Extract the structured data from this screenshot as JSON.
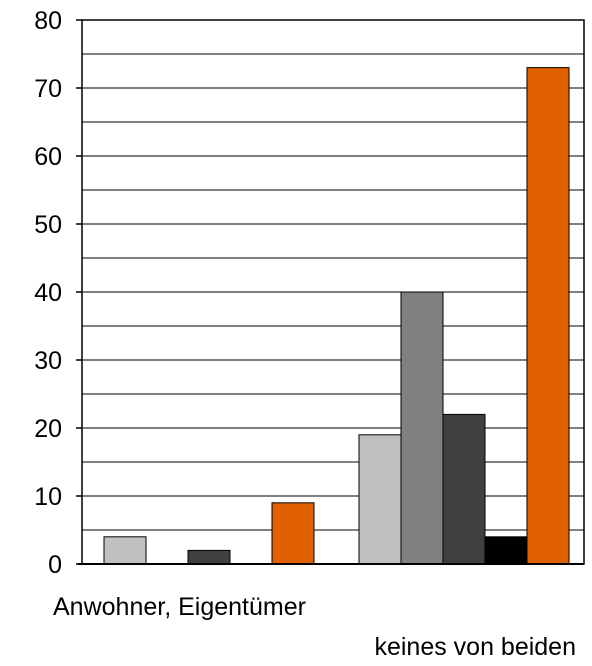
{
  "chart_data": {
    "type": "bar",
    "categories": [
      "Anwohner, Eigentümer",
      "keines von beiden"
    ],
    "series": [
      {
        "color": "#c0c0c0",
        "values": [
          4,
          19
        ]
      },
      {
        "color": "#808080",
        "values": [
          0,
          40
        ]
      },
      {
        "color": "#404040",
        "values": [
          2,
          22
        ]
      },
      {
        "color": "#000000",
        "values": [
          0,
          4
        ]
      },
      {
        "color": "#e06000",
        "values": [
          9,
          73
        ]
      }
    ],
    "ylim": [
      0,
      80
    ],
    "yticks": [
      "0",
      "10",
      "20",
      "30",
      "40",
      "50",
      "60",
      "70",
      "80"
    ],
    "minor_gridlines": true,
    "grid": true,
    "legend": false
  }
}
